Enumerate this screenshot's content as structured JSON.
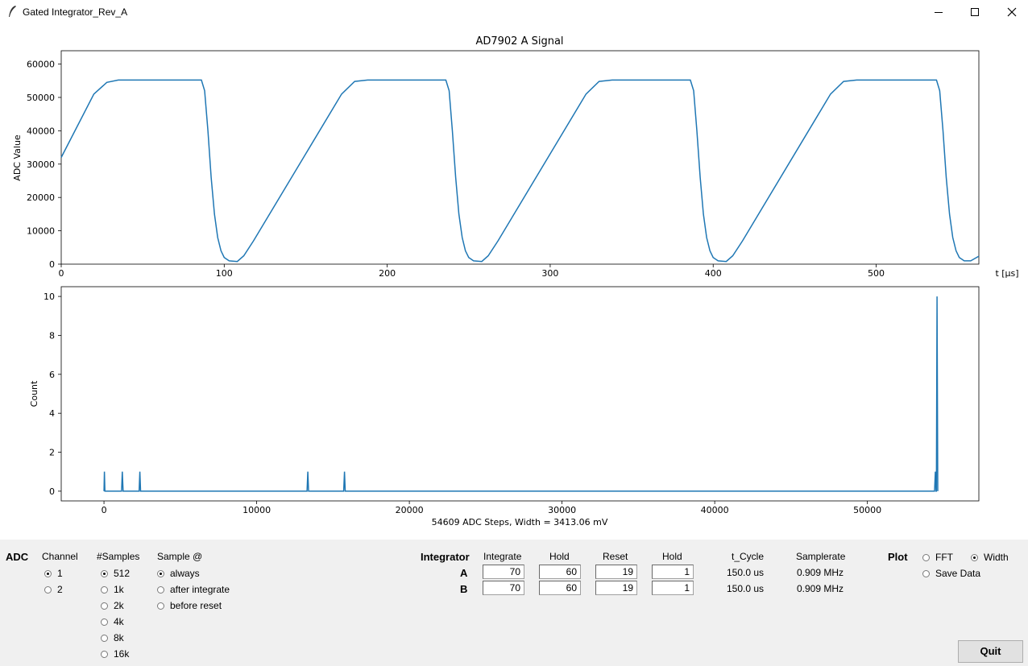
{
  "window": {
    "title": "Gated Integrator_Rev_A"
  },
  "plot1": {
    "title": "AD7902 A Signal",
    "ylabel": "ADC Value",
    "xlabel": "t [μs]",
    "xticks": [
      "0",
      "100",
      "200",
      "300",
      "400",
      "500"
    ],
    "yticks": [
      "0",
      "10000",
      "20000",
      "30000",
      "40000",
      "50000",
      "60000"
    ]
  },
  "plot2": {
    "ylabel": "Count",
    "xlabel": "54609 ADC Steps, Width = 3413.06 mV",
    "xticks": [
      "0",
      "10000",
      "20000",
      "30000",
      "40000",
      "50000"
    ],
    "yticks": [
      "0",
      "2",
      "4",
      "6",
      "8",
      "10"
    ]
  },
  "chart_data": [
    {
      "type": "line",
      "title": "AD7902 A Signal",
      "ylabel": "ADC Value",
      "xlabel": "t [μs]",
      "xlim": [
        0,
        563
      ],
      "ylim": [
        0,
        64000
      ],
      "series": [
        {
          "x": [
            0,
            20,
            28,
            35,
            86,
            88,
            90,
            92,
            94,
            96,
            98,
            100,
            103,
            108,
            112,
            118,
            172,
            180,
            188,
            236,
            238,
            240,
            242,
            244,
            246,
            248,
            250,
            253,
            258,
            262,
            268,
            322,
            330,
            338,
            386,
            388,
            390,
            392,
            394,
            396,
            398,
            400,
            403,
            408,
            412,
            418,
            472,
            480,
            488,
            537,
            539,
            541,
            543,
            545,
            547,
            549,
            551,
            554,
            558,
            563
          ],
          "y": [
            32000,
            51000,
            54500,
            55200,
            55200,
            52000,
            40000,
            26000,
            15000,
            8000,
            4000,
            2000,
            1000,
            800,
            2500,
            7000,
            51000,
            54800,
            55200,
            55200,
            52000,
            40000,
            26000,
            15000,
            8000,
            4000,
            2000,
            1000,
            800,
            2500,
            7000,
            51000,
            54800,
            55200,
            55200,
            52000,
            40000,
            26000,
            15000,
            8000,
            4000,
            2000,
            1000,
            800,
            2500,
            7000,
            51000,
            54800,
            55200,
            55200,
            52000,
            40000,
            26000,
            15000,
            8000,
            4000,
            2000,
            1000,
            1000,
            2400
          ]
        }
      ]
    },
    {
      "type": "line",
      "ylabel": "Count",
      "xlabel": "54609 ADC Steps, Width = 3413.06 mV",
      "xlim": [
        -2800,
        57300
      ],
      "ylim": [
        -0.5,
        10.5
      ],
      "series": [
        {
          "x": [
            0,
            30,
            60,
            1150,
            1200,
            1250,
            2300,
            2350,
            2400,
            13300,
            13350,
            13400,
            15700,
            15750,
            15800,
            54400,
            54450,
            54500,
            54520,
            54560,
            54609
          ],
          "y": [
            0,
            1,
            0,
            0,
            1,
            0,
            0,
            1,
            0,
            0,
            1,
            0,
            0,
            1,
            0,
            0,
            1,
            0,
            0,
            10,
            0
          ]
        }
      ]
    }
  ],
  "controls": {
    "adc_label": "ADC",
    "channel": {
      "header": "Channel",
      "options": [
        "1",
        "2"
      ],
      "selected": 0
    },
    "samples": {
      "header": "#Samples",
      "options": [
        "512",
        "1k",
        "2k",
        "4k",
        "8k",
        "16k"
      ],
      "selected": 0
    },
    "sample_at": {
      "header": "Sample @",
      "options": [
        "always",
        "after integrate",
        "before reset"
      ],
      "selected": 0
    },
    "integrator": {
      "label": "Integrator",
      "headers": [
        "Integrate",
        "Hold",
        "Reset",
        "Hold",
        "t_Cycle",
        "Samplerate"
      ],
      "rows": [
        {
          "name": "A",
          "integrate": "70",
          "hold1": "60",
          "reset": "19",
          "hold2": "1",
          "t_cycle": "150.0 us",
          "samplerate": "0.909 MHz"
        },
        {
          "name": "B",
          "integrate": "70",
          "hold1": "60",
          "reset": "19",
          "hold2": "1",
          "t_cycle": "150.0 us",
          "samplerate": "0.909 MHz"
        }
      ]
    },
    "plot": {
      "label": "Plot",
      "options": [
        "FFT",
        "Width",
        "Save Data"
      ],
      "selected": 1
    },
    "quit_label": "Quit"
  },
  "colors": {
    "line": "#1f77b4",
    "panel": "#f0f0f0"
  }
}
